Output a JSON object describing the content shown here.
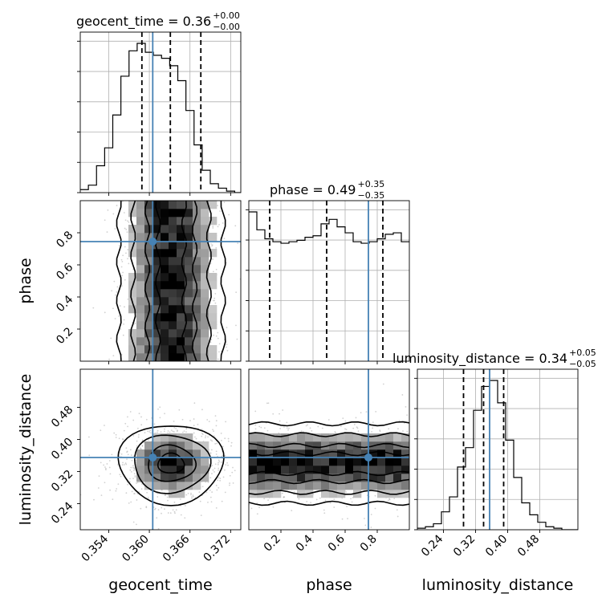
{
  "chart_data": {
    "type": "corner",
    "parameters": [
      "geocent_time",
      "phase",
      "luminosity_distance"
    ],
    "ranges": {
      "geocent_time": [
        0.3498,
        0.3735
      ],
      "phase": [
        0.0,
        1.0
      ],
      "luminosity_distance": [
        0.175,
        0.575
      ]
    },
    "truths": {
      "geocent_time": 0.3605,
      "phase": 0.745,
      "luminosity_distance": 0.355
    },
    "quantiles": {
      "geocent_time": [
        0.3589,
        0.3631,
        0.3676
      ],
      "phase": [
        0.13,
        0.485,
        0.835
      ],
      "luminosity_distance": [
        0.29,
        0.34,
        0.39
      ]
    },
    "titles": {
      "geocent_time": {
        "label": "geocent_time = 0.36",
        "sup": "+0.00",
        "sub": "−0.00"
      },
      "phase": {
        "label": "phase = 0.49",
        "sup": "+0.35",
        "sub": "−0.35"
      },
      "luminosity_distance": {
        "label": "luminosity_distance = 0.34",
        "sup": "+0.05",
        "sub": "−0.05"
      }
    },
    "ticks": {
      "geocent_time": [
        "0.354",
        "0.360",
        "0.366",
        "0.372"
      ],
      "phase": [
        "0.2",
        "0.4",
        "0.6",
        "0.8"
      ],
      "luminosity_distance": [
        "0.24",
        "0.32",
        "0.40",
        "0.48"
      ]
    },
    "histograms": {
      "geocent_time": {
        "edges_start": 0.3498,
        "bin_width": 0.0012,
        "counts": [
          2,
          5,
          18,
          30,
          52,
          78,
          95,
          100,
          94,
          92,
          90,
          85,
          75,
          55,
          32,
          15,
          6,
          3,
          1,
          0
        ]
      },
      "phase": {
        "edges_start": 0.0,
        "bin_width": 0.05,
        "counts": [
          100,
          88,
          82,
          80,
          79,
          80,
          81,
          83,
          84,
          92,
          95,
          90,
          86,
          80,
          79,
          80,
          82,
          85,
          86,
          80
        ]
      },
      "luminosity_distance": {
        "edges_start": 0.175,
        "bin_width": 0.02,
        "counts": [
          1,
          2,
          4,
          12,
          22,
          42,
          55,
          80,
          96,
          100,
          85,
          60,
          35,
          18,
          10,
          5,
          2,
          1,
          0,
          0
        ]
      }
    },
    "hist_colors": {
      "line": "#000000",
      "truth": "#4682b4",
      "quantile": "#000000"
    },
    "grid": true
  }
}
